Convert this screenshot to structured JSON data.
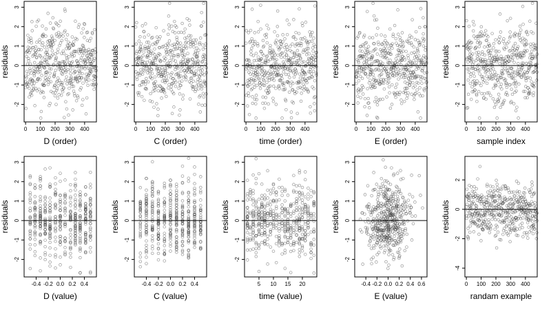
{
  "chart_data": [
    {
      "type": "scatter",
      "xlabel": "D (order)",
      "ylabel": "residuals",
      "xlim": [
        -10,
        480
      ],
      "ylim": [
        -2.9,
        3.3
      ],
      "xticks": [
        0,
        100,
        200,
        300,
        400
      ],
      "xtick_labels": [
        "0",
        "100",
        "200",
        "300",
        "400"
      ],
      "yticks": [
        -2,
        -1,
        0,
        1,
        2,
        3
      ],
      "ytick_labels": [
        "-2",
        "-1",
        "0",
        "1",
        "2",
        "3"
      ],
      "hline": 0,
      "n_points": 480,
      "gen": {
        "mode": "index",
        "seed": 11,
        "sd": 1.0,
        "ymin": -2.7,
        "ymax": 3.2
      }
    },
    {
      "type": "scatter",
      "xlabel": "C (order)",
      "ylabel": "residuals",
      "xlim": [
        -10,
        480
      ],
      "ylim": [
        -2.9,
        3.3
      ],
      "xticks": [
        0,
        100,
        200,
        300,
        400
      ],
      "xtick_labels": [
        "0",
        "100",
        "200",
        "300",
        "400"
      ],
      "yticks": [
        -2,
        -1,
        0,
        1,
        2,
        3
      ],
      "ytick_labels": [
        "-2",
        "-1",
        "0",
        "1",
        "2",
        "3"
      ],
      "hline": 0,
      "n_points": 480,
      "gen": {
        "mode": "index",
        "seed": 23,
        "sd": 1.0,
        "ymin": -2.7,
        "ymax": 3.2
      }
    },
    {
      "type": "scatter",
      "xlabel": "time (order)",
      "ylabel": "residuals",
      "xlim": [
        -10,
        480
      ],
      "ylim": [
        -2.9,
        3.3
      ],
      "xticks": [
        0,
        100,
        200,
        300,
        400
      ],
      "xtick_labels": [
        "0",
        "100",
        "200",
        "300",
        "400"
      ],
      "yticks": [
        -2,
        -1,
        0,
        1,
        2,
        3
      ],
      "ytick_labels": [
        "-2",
        "-1",
        "0",
        "1",
        "2",
        "3"
      ],
      "hline": 0,
      "n_points": 480,
      "gen": {
        "mode": "index",
        "seed": 37,
        "sd": 1.0,
        "ymin": -2.7,
        "ymax": 3.2
      }
    },
    {
      "type": "scatter",
      "xlabel": "E (order)",
      "ylabel": "residuals",
      "xlim": [
        -10,
        480
      ],
      "ylim": [
        -2.9,
        3.3
      ],
      "xticks": [
        0,
        100,
        200,
        300,
        400
      ],
      "xtick_labels": [
        "0",
        "100",
        "200",
        "300",
        "400"
      ],
      "yticks": [
        -2,
        -1,
        0,
        1,
        2,
        3
      ],
      "ytick_labels": [
        "-2",
        "-1",
        "0",
        "1",
        "2",
        "3"
      ],
      "hline": 0,
      "n_points": 480,
      "gen": {
        "mode": "index",
        "seed": 41,
        "sd": 1.0,
        "ymin": -2.7,
        "ymax": 3.2
      }
    },
    {
      "type": "scatter",
      "xlabel": "sample index",
      "ylabel": "residuals",
      "xlim": [
        -10,
        480
      ],
      "ylim": [
        -2.9,
        3.3
      ],
      "xticks": [
        0,
        100,
        200,
        300,
        400
      ],
      "xtick_labels": [
        "0",
        "100",
        "200",
        "300",
        "400"
      ],
      "yticks": [
        -2,
        -1,
        0,
        1,
        2,
        3
      ],
      "ytick_labels": [
        "-2",
        "-1",
        "0",
        "1",
        "2",
        "3"
      ],
      "hline": 0,
      "n_points": 480,
      "gen": {
        "mode": "index",
        "seed": 53,
        "sd": 1.0,
        "ymin": -2.7,
        "ymax": 3.2
      }
    },
    {
      "type": "scatter",
      "xlabel": "D (value)",
      "ylabel": "residuals",
      "xlim": [
        -0.6,
        0.6
      ],
      "ylim": [
        -2.9,
        3.3
      ],
      "xticks": [
        -0.4,
        -0.2,
        0.0,
        0.2,
        0.4
      ],
      "xtick_labels": [
        "-0.4",
        "-0.2",
        "0.0",
        "0.2",
        "0.4"
      ],
      "yticks": [
        -2,
        -1,
        0,
        1,
        2,
        3
      ],
      "ytick_labels": [
        "-2",
        "-1",
        "0",
        "1",
        "2",
        "3"
      ],
      "hline": 0,
      "n_points": 480,
      "gen": {
        "mode": "levels",
        "seed": 61,
        "sd": 1.0,
        "ymin": -2.7,
        "ymax": 3.2,
        "levels": [
          -0.5,
          -0.42,
          -0.33,
          -0.25,
          -0.17,
          -0.08,
          0.0,
          0.08,
          0.17,
          0.25,
          0.33,
          0.42,
          0.5
        ]
      }
    },
    {
      "type": "scatter",
      "xlabel": "C (value)",
      "ylabel": "residuals",
      "xlim": [
        -0.6,
        0.6
      ],
      "ylim": [
        -2.9,
        3.3
      ],
      "xticks": [
        -0.4,
        -0.2,
        0.0,
        0.2,
        0.4
      ],
      "xtick_labels": [
        "-0.4",
        "-0.2",
        "0.0",
        "0.2",
        "0.4"
      ],
      "yticks": [
        -2,
        -1,
        0,
        1,
        2,
        3
      ],
      "ytick_labels": [
        "-2",
        "-1",
        "0",
        "1",
        "2",
        "3"
      ],
      "hline": 0,
      "n_points": 480,
      "gen": {
        "mode": "levels",
        "seed": 73,
        "sd": 1.0,
        "ymin": -2.7,
        "ymax": 3.2,
        "levels": [
          -0.5,
          -0.4,
          -0.3,
          -0.2,
          -0.1,
          0.0,
          0.1,
          0.2,
          0.3,
          0.4,
          0.5
        ]
      }
    },
    {
      "type": "scatter",
      "xlabel": "time (value)",
      "ylabel": "residuals",
      "xlim": [
        0,
        25
      ],
      "ylim": [
        -2.9,
        3.3
      ],
      "xticks": [
        5,
        10,
        15,
        20
      ],
      "xtick_labels": [
        "5",
        "10",
        "15",
        "20"
      ],
      "yticks": [
        -2,
        -1,
        0,
        1,
        2,
        3
      ],
      "ytick_labels": [
        "-2",
        "-1",
        "0",
        "1",
        "2",
        "3"
      ],
      "hline": 0,
      "n_points": 480,
      "gen": {
        "mode": "levels",
        "seed": 89,
        "sd": 1.0,
        "ymin": -2.7,
        "ymax": 3.2,
        "levels": [
          1,
          2,
          3,
          4,
          5,
          6,
          7,
          8,
          9,
          10,
          11,
          12,
          13,
          14,
          15,
          16,
          17,
          18,
          19,
          20,
          21,
          22,
          23,
          24
        ]
      }
    },
    {
      "type": "scatter",
      "xlabel": "E (value)",
      "ylabel": "residuals",
      "xlim": [
        -0.6,
        0.7
      ],
      "ylim": [
        -2.9,
        3.3
      ],
      "xticks": [
        -0.4,
        -0.2,
        0.0,
        0.2,
        0.4,
        0.6
      ],
      "xtick_labels": [
        "-0.4",
        "-0.2",
        "0.0",
        "0.2",
        "0.4",
        "0.6"
      ],
      "yticks": [
        -2,
        -1,
        0,
        1,
        2,
        3
      ],
      "ytick_labels": [
        "-2",
        "-1",
        "0",
        "1",
        "2",
        "3"
      ],
      "hline": 0,
      "n_points": 480,
      "gen": {
        "mode": "normalx",
        "seed": 97,
        "sd": 1.0,
        "ymin": -2.7,
        "ymax": 3.2,
        "xmean": 0.0,
        "xsd": 0.2,
        "xmin": -0.5,
        "xmax": 0.62
      }
    },
    {
      "type": "scatter",
      "xlabel": "randam example",
      "ylabel": "residuals",
      "xlim": [
        -10,
        480
      ],
      "ylim": [
        -4.6,
        3.6
      ],
      "xticks": [
        0,
        100,
        200,
        300,
        400
      ],
      "xtick_labels": [
        "0",
        "100",
        "200",
        "300",
        "400"
      ],
      "yticks": [
        -4,
        -2,
        0,
        2
      ],
      "ytick_labels": [
        "-4",
        "-2",
        "0",
        "2"
      ],
      "hline": 0,
      "n_points": 480,
      "gen": {
        "mode": "index",
        "seed": 101,
        "sd": 0.9,
        "ymin": -4.2,
        "ymax": 3.3
      }
    }
  ]
}
